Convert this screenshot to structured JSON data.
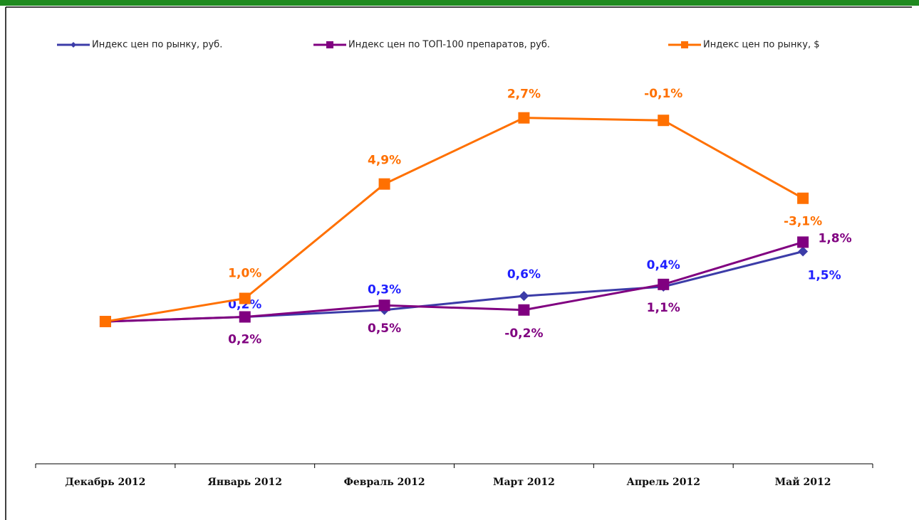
{
  "chart_data": {
    "type": "line",
    "categories": [
      "Декабрь 2012",
      "Январь 2012",
      "Февраль 2012",
      "Март 2012",
      "Апрель 2012",
      "Май 2012"
    ],
    "series": [
      {
        "name": "Индекс цен по рынку, руб.",
        "color": "#3c3ca8",
        "label_color": "#1f1fff",
        "marker": "diamond",
        "values": [
          0,
          0.2,
          0.3,
          0.6,
          0.4,
          1.5
        ],
        "value_labels": [
          null,
          "0,2%",
          "0,3%",
          "0,6%",
          "0,4%",
          "1,5%"
        ]
      },
      {
        "name": "Индекс цен по ТОП-100 препаратов, руб.",
        "color": "#800080",
        "label_color": "#800080",
        "marker": "square",
        "values": [
          0,
          0.2,
          0.5,
          -0.2,
          1.1,
          1.8
        ],
        "value_labels": [
          null,
          "0,2%",
          "0,5%",
          "-0,2%",
          "1,1%",
          "1,8%"
        ]
      },
      {
        "name": "Индекс цен по рынку, $",
        "color": "#ff7000",
        "label_color": "#ff7000",
        "marker": "square",
        "values": [
          0,
          1.0,
          4.9,
          2.7,
          -0.1,
          -3.1
        ],
        "value_labels": [
          null,
          "1,0%",
          "4,9%",
          "2,7%",
          "-0,1%",
          "-3,1%"
        ]
      }
    ]
  }
}
